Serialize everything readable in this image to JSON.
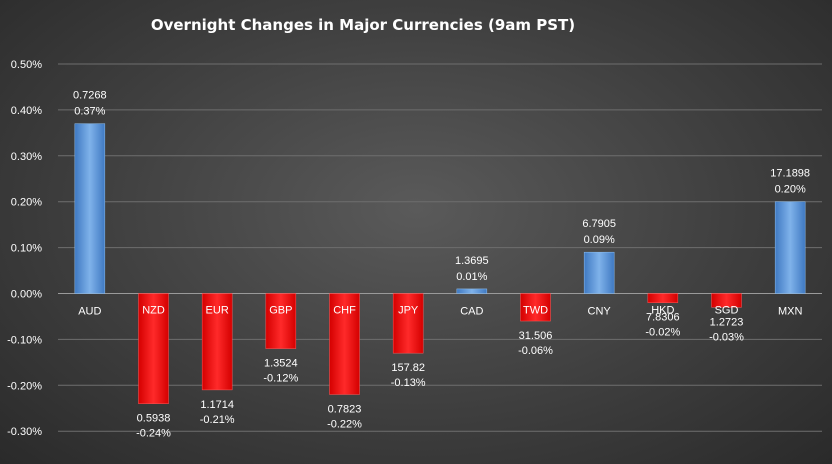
{
  "chart_data": {
    "type": "bar",
    "title": "Overnight Changes in Major Currencies (9am PST)",
    "xlabel": "",
    "ylabel": "",
    "ylim": [
      -0.0033,
      0.005
    ],
    "yticks": [
      0.005,
      0.004,
      0.003,
      0.002,
      0.001,
      0.0,
      -0.001,
      -0.002,
      -0.003
    ],
    "ytick_labels": [
      "0.50%",
      "0.40%",
      "0.30%",
      "0.20%",
      "0.10%",
      "0.00%",
      "-0.10%",
      "-0.20%",
      "-0.30%"
    ],
    "grid": true,
    "legend": "none",
    "colors": {
      "positive": "#5b9bd5",
      "negative": "#ff0000"
    },
    "categories": [
      "AUD",
      "NZD",
      "EUR",
      "GBP",
      "CHF",
      "JPY",
      "CAD",
      "TWD",
      "CNY",
      "HKD",
      "SGD",
      "MXN"
    ],
    "values": [
      0.0037,
      -0.0024,
      -0.0021,
      -0.0012,
      -0.0022,
      -0.0013,
      0.0001,
      -0.0006,
      0.0009,
      -0.0002,
      -0.0003,
      0.002
    ],
    "rates": [
      "0.7268",
      "0.5938",
      "1.1714",
      "1.3524",
      "0.7823",
      "157.82",
      "1.3695",
      "31.506",
      "6.7905",
      "7.8306",
      "1.2723",
      "17.1898"
    ],
    "pct_labels": [
      "0.37%",
      "-0.24%",
      "-0.21%",
      "-0.12%",
      "-0.22%",
      "-0.13%",
      "0.01%",
      "-0.06%",
      "0.09%",
      "-0.02%",
      "-0.03%",
      "0.20%"
    ]
  }
}
